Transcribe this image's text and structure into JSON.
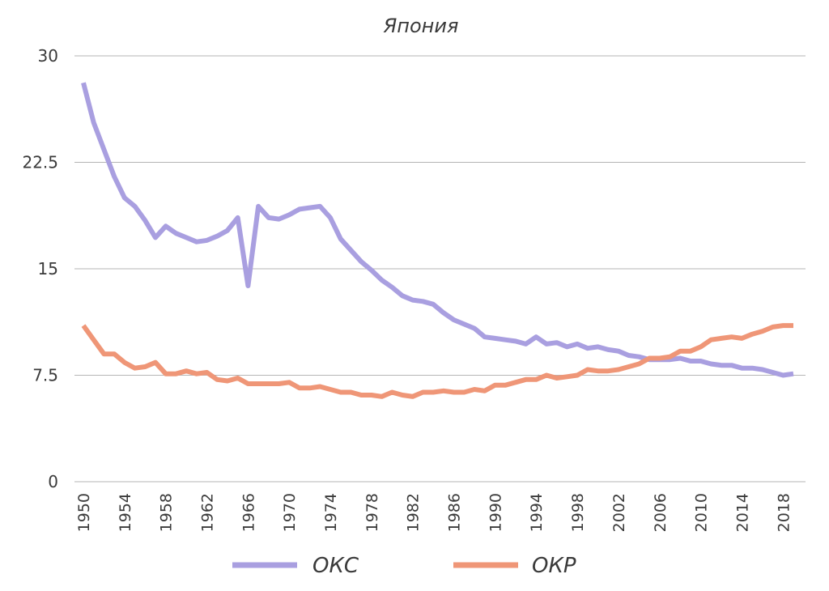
{
  "chart_data": {
    "type": "line",
    "title": "Япония",
    "xlabel": "",
    "ylabel": "",
    "xlim": [
      1950,
      2019
    ],
    "ylim": [
      0,
      30
    ],
    "yticks": [
      0,
      7.5,
      15,
      22.5,
      30
    ],
    "ytick_labels": [
      "0",
      "7.5",
      "15",
      "22.5",
      "30"
    ],
    "xticks": [
      1950,
      1954,
      1958,
      1962,
      1966,
      1970,
      1974,
      1978,
      1982,
      1986,
      1990,
      1994,
      1998,
      2002,
      2006,
      2010,
      2014,
      2018
    ],
    "xtick_labels": [
      "1950",
      "1954",
      "1958",
      "1962",
      "1966",
      "1970",
      "1974",
      "1978",
      "1982",
      "1986",
      "1990",
      "1994",
      "1998",
      "2002",
      "2006",
      "2010",
      "2014",
      "2018"
    ],
    "grid": true,
    "legend_position": "bottom",
    "x": [
      1950,
      1951,
      1952,
      1953,
      1954,
      1955,
      1956,
      1957,
      1958,
      1959,
      1960,
      1961,
      1962,
      1963,
      1964,
      1965,
      1966,
      1967,
      1968,
      1969,
      1970,
      1971,
      1972,
      1973,
      1974,
      1975,
      1976,
      1977,
      1978,
      1979,
      1980,
      1981,
      1982,
      1983,
      1984,
      1985,
      1986,
      1987,
      1988,
      1989,
      1990,
      1991,
      1992,
      1993,
      1994,
      1995,
      1996,
      1997,
      1998,
      1999,
      2000,
      2001,
      2002,
      2003,
      2004,
      2005,
      2006,
      2007,
      2008,
      2009,
      2010,
      2011,
      2012,
      2013,
      2014,
      2015,
      2016,
      2017,
      2018,
      2019
    ],
    "series": [
      {
        "name": "ОКС",
        "color": "#a99fe0",
        "values": [
          28.1,
          25.3,
          23.4,
          21.5,
          20.0,
          19.4,
          18.4,
          17.2,
          18.0,
          17.5,
          17.2,
          16.9,
          17.0,
          17.3,
          17.7,
          18.6,
          13.8,
          19.4,
          18.6,
          18.5,
          18.8,
          19.2,
          19.3,
          19.4,
          18.6,
          17.1,
          16.3,
          15.5,
          14.9,
          14.2,
          13.7,
          13.1,
          12.8,
          12.7,
          12.5,
          11.9,
          11.4,
          11.1,
          10.8,
          10.2,
          10.1,
          10.0,
          9.9,
          9.7,
          10.2,
          9.7,
          9.8,
          9.5,
          9.7,
          9.4,
          9.5,
          9.3,
          9.2,
          8.9,
          8.8,
          8.6,
          8.6,
          8.6,
          8.7,
          8.5,
          8.5,
          8.3,
          8.2,
          8.2,
          8.0,
          8.0,
          7.9,
          7.7,
          7.5,
          7.6
        ]
      },
      {
        "name": "ОКР",
        "color": "#ef9677",
        "values": [
          11.0,
          10.0,
          9.0,
          9.0,
          8.4,
          8.0,
          8.1,
          8.4,
          7.6,
          7.6,
          7.8,
          7.6,
          7.7,
          7.2,
          7.1,
          7.3,
          6.9,
          6.9,
          6.9,
          6.9,
          7.0,
          6.6,
          6.6,
          6.7,
          6.5,
          6.3,
          6.3,
          6.1,
          6.1,
          6.0,
          6.3,
          6.1,
          6.0,
          6.3,
          6.3,
          6.4,
          6.3,
          6.3,
          6.5,
          6.4,
          6.8,
          6.8,
          7.0,
          7.2,
          7.2,
          7.5,
          7.3,
          7.4,
          7.5,
          7.9,
          7.8,
          7.8,
          7.9,
          8.1,
          8.3,
          8.7,
          8.7,
          8.8,
          9.2,
          9.2,
          9.5,
          10.0,
          10.1,
          10.2,
          10.1,
          10.4,
          10.6,
          10.9,
          11.0,
          11.0
        ]
      }
    ]
  }
}
